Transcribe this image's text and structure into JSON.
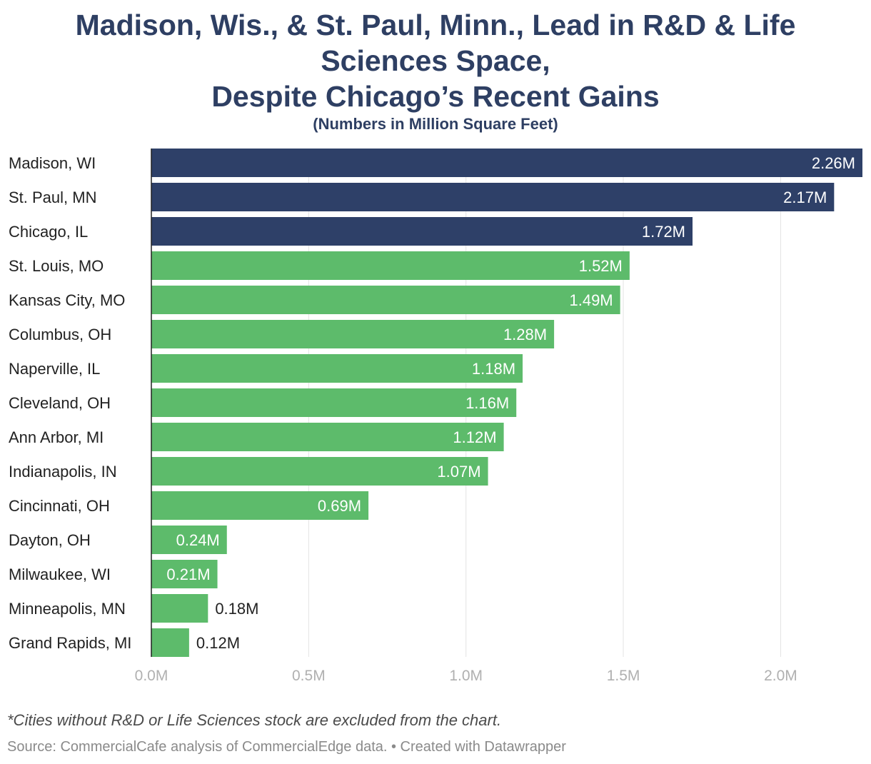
{
  "title_lines": [
    "Madison, Wis., & St. Paul, Minn., Lead in R&D & Life",
    "Sciences Space,",
    "Despite Chicago’s Recent Gains"
  ],
  "subtitle": "(Numbers in Million Square Feet)",
  "footnote": "*Cities without R&D or Life Sciences stock are excluded from the chart.",
  "source": "Source: CommercialCafe analysis of CommercialEdge data. • Created with Datawrapper",
  "colors": {
    "highlight": "#2e4068",
    "default": "#5dbb6b",
    "grid": "#e3e3e3",
    "axis": "#222222",
    "tick_label": "#b0b0b0",
    "label_inside": "#ffffff",
    "label_outside": "#222222",
    "category_label": "#222222"
  },
  "chart_data": {
    "type": "bar",
    "orientation": "horizontal",
    "categories": [
      "Madison, WI",
      "St. Paul, MN",
      "Chicago, IL",
      "St. Louis, MO",
      "Kansas City, MO",
      "Columbus, OH",
      "Naperville, IL",
      "Cleveland, OH",
      "Ann Arbor, MI",
      "Indianapolis, IN",
      "Cincinnati, OH",
      "Dayton, OH",
      "Milwaukee, WI",
      "Minneapolis, MN",
      "Grand Rapids, MI"
    ],
    "values": [
      2.26,
      2.17,
      1.72,
      1.52,
      1.49,
      1.28,
      1.18,
      1.16,
      1.12,
      1.07,
      0.69,
      0.24,
      0.21,
      0.18,
      0.12
    ],
    "value_labels": [
      "2.26M",
      "2.17M",
      "1.72M",
      "1.52M",
      "1.49M",
      "1.28M",
      "1.18M",
      "1.16M",
      "1.12M",
      "1.07M",
      "0.69M",
      "0.24M",
      "0.21M",
      "0.18M",
      "0.12M"
    ],
    "highlighted": [
      true,
      true,
      true,
      false,
      false,
      false,
      false,
      false,
      false,
      false,
      false,
      false,
      false,
      false,
      false
    ],
    "xlim": [
      0,
      2.26
    ],
    "xticks": [
      0,
      0.5,
      1.0,
      1.5,
      2.0
    ],
    "xtick_labels": [
      "0.0M",
      "0.5M",
      "1.0M",
      "1.5M",
      "2.0M"
    ],
    "grid": true,
    "legend": "none"
  }
}
